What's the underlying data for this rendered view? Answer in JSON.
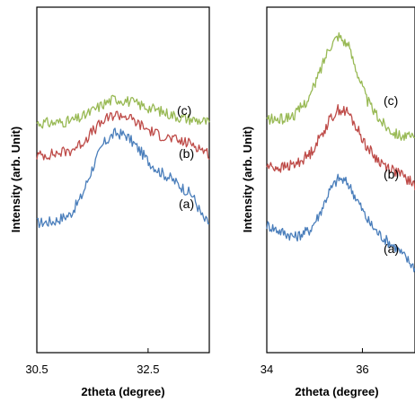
{
  "chart_data": [
    {
      "type": "line",
      "xlabel": "2theta (degree)",
      "ylabel": "Intensity (arb. Unit)",
      "xlim": [
        30.5,
        33.6
      ],
      "ylim": [
        0,
        100
      ],
      "x_ticks": [
        "30.5",
        "32.5"
      ],
      "y_ticks_shown": false,
      "series": [
        {
          "name": "(a)",
          "color": "#4a7ebb",
          "x": [
            30.5,
            30.8,
            31.1,
            31.3,
            31.5,
            31.7,
            31.9,
            32.1,
            32.3,
            32.5,
            32.7,
            32.9,
            33.1,
            33.3,
            33.5,
            33.6
          ],
          "y": [
            37.5,
            38.0,
            40.0,
            45.0,
            53.5,
            60.5,
            63.5,
            63.0,
            59.5,
            55.5,
            52.5,
            50.5,
            48.0,
            45.5,
            38.5,
            37.5
          ]
        },
        {
          "name": "(b)",
          "color": "#be4b48",
          "x": [
            30.5,
            30.8,
            31.1,
            31.3,
            31.5,
            31.7,
            31.9,
            32.1,
            32.3,
            32.5,
            32.7,
            32.9,
            33.1,
            33.3,
            33.5,
            33.6
          ],
          "y": [
            57.0,
            57.5,
            58.5,
            60.5,
            64.0,
            67.0,
            69.0,
            68.5,
            66.5,
            64.5,
            63.0,
            62.0,
            61.0,
            60.5,
            58.5,
            57.5
          ]
        },
        {
          "name": "(c)",
          "color": "#98b954",
          "x": [
            30.5,
            30.8,
            31.1,
            31.3,
            31.5,
            31.7,
            31.9,
            32.1,
            32.3,
            32.5,
            32.7,
            32.9,
            33.1,
            33.3,
            33.5,
            33.6
          ],
          "y": [
            66.5,
            66.5,
            67.0,
            68.0,
            70.0,
            72.0,
            73.5,
            73.0,
            72.0,
            71.0,
            70.0,
            69.0,
            68.0,
            67.5,
            67.0,
            66.5
          ]
        }
      ]
    },
    {
      "type": "line",
      "xlabel": "2theta (degree)",
      "ylabel": "Intensity (arb. Unit)",
      "xlim": [
        34,
        37.1
      ],
      "ylim": [
        0,
        100
      ],
      "x_ticks": [
        "34",
        "36"
      ],
      "y_ticks_shown": false,
      "series": [
        {
          "name": "(a)",
          "color": "#4a7ebb",
          "x": [
            34.0,
            34.3,
            34.6,
            34.9,
            35.1,
            35.3,
            35.5,
            35.7,
            35.9,
            36.1,
            36.3,
            36.5,
            36.7,
            36.9,
            37.1
          ],
          "y": [
            37.0,
            35.0,
            33.5,
            35.5,
            40.0,
            46.5,
            50.5,
            49.0,
            44.0,
            38.5,
            35.0,
            32.5,
            30.5,
            27.5,
            24.5
          ]
        },
        {
          "name": "(b)",
          "color": "#be4b48",
          "x": [
            34.0,
            34.3,
            34.6,
            34.9,
            35.1,
            35.3,
            35.5,
            35.7,
            35.9,
            36.1,
            36.3,
            36.5,
            36.7,
            36.9,
            37.1
          ],
          "y": [
            54.0,
            53.5,
            54.5,
            57.5,
            62.0,
            67.0,
            70.5,
            69.5,
            64.5,
            59.5,
            56.0,
            54.0,
            52.5,
            50.5,
            48.5
          ]
        },
        {
          "name": "(c)",
          "color": "#98b954",
          "x": [
            34.0,
            34.3,
            34.6,
            34.9,
            35.1,
            35.3,
            35.5,
            35.7,
            35.9,
            36.1,
            36.3,
            36.5,
            36.7,
            36.9,
            37.1
          ],
          "y": [
            67.5,
            67.5,
            69.0,
            74.0,
            81.0,
            88.5,
            92.0,
            89.0,
            81.0,
            73.0,
            68.5,
            65.5,
            63.5,
            62.5,
            62.0
          ]
        }
      ]
    }
  ]
}
